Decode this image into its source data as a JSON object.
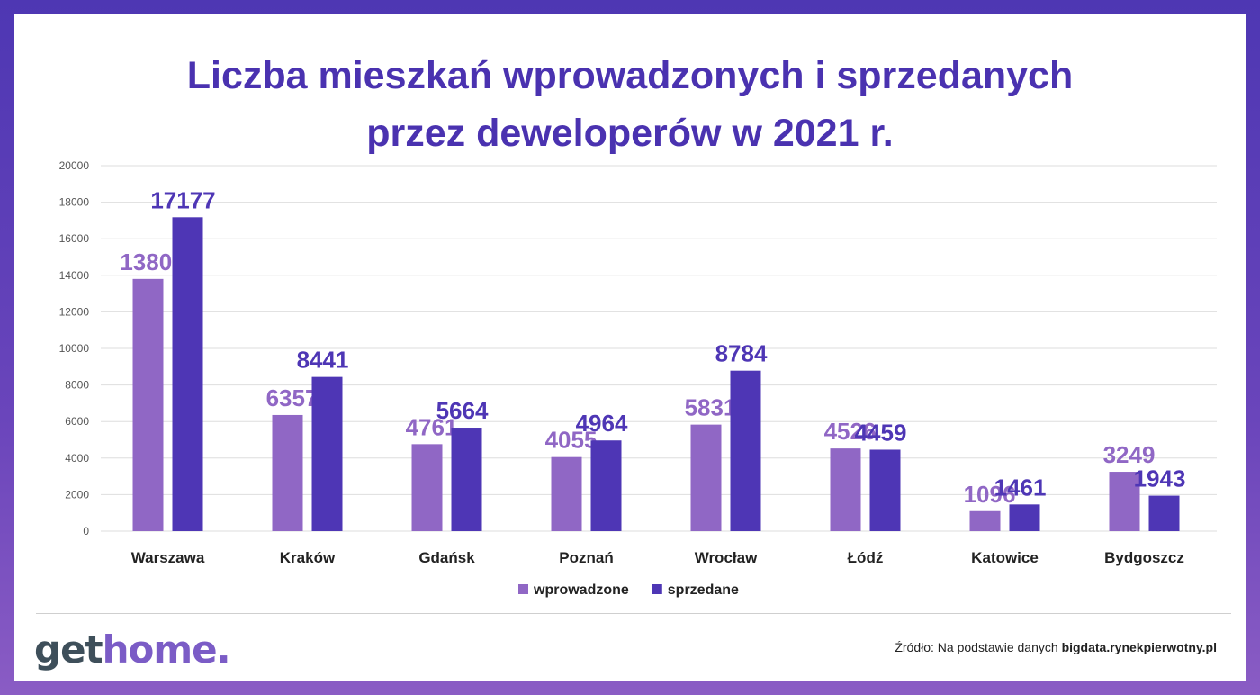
{
  "title_line1": "Liczba mieszkań wprowadzonych i sprzedanych",
  "title_line2": "przez deweloperów w 2021 r.",
  "logo": {
    "part1": "get",
    "part2": "home."
  },
  "source": {
    "prefix": "Źródło: Na podstawie danych ",
    "link": "bigdata.rynekpierwotny.pl"
  },
  "colors": {
    "wprowadzone": "#9067c5",
    "sprzedane": "#4e36b5",
    "title": "#4a32b0"
  },
  "chart_data": {
    "type": "bar",
    "title": "Liczba mieszkań wprowadzonych i sprzedanych przez deweloperów w 2021 r.",
    "xlabel": "",
    "ylabel": "",
    "ylim": [
      0,
      20000
    ],
    "yticks": [
      0,
      2000,
      4000,
      6000,
      8000,
      10000,
      12000,
      14000,
      16000,
      18000,
      20000
    ],
    "grid": true,
    "legend_position": "bottom",
    "categories": [
      "Warszawa",
      "Kraków",
      "Gdańsk",
      "Poznań",
      "Wrocław",
      "Łódź",
      "Katowice",
      "Bydgoszcz"
    ],
    "series": [
      {
        "name": "wprowadzone",
        "values": [
          13801,
          6357,
          4761,
          4055,
          5831,
          4526,
          1096,
          3249
        ]
      },
      {
        "name": "sprzedane",
        "values": [
          17177,
          8441,
          5664,
          4964,
          8784,
          4459,
          1461,
          1943
        ]
      }
    ]
  }
}
